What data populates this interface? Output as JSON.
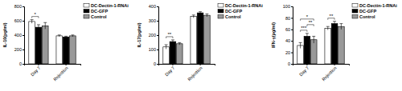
{
  "chart_data": [
    {
      "type": "bar",
      "y_label": "IL-10(pg/ml)",
      "categories": [
        "Day 7",
        "Rejection"
      ],
      "ylim": [
        0,
        800
      ],
      "yticks": [
        0,
        200,
        400,
        600,
        800
      ],
      "legend": "upper right",
      "series": [
        {
          "name": "DC-Dectin-1-RNAi",
          "color": "#ffffff",
          "values": [
            590,
            390
          ],
          "errors": [
            25,
            12
          ]
        },
        {
          "name": "DC-GFP",
          "color": "#000000",
          "values": [
            510,
            375
          ],
          "errors": [
            35,
            10
          ]
        },
        {
          "name": "Control",
          "color": "#999999",
          "values": [
            530,
            390
          ],
          "errors": [
            45,
            12
          ]
        }
      ],
      "annotations": [
        {
          "text": "*",
          "category": "Day 7",
          "from": "DC-Dectin-1-RNAi",
          "to": "DC-GFP"
        }
      ]
    },
    {
      "type": "bar",
      "y_label": "IL-17(pg/ml)",
      "categories": [
        "Day 7",
        "Rejection"
      ],
      "ylim": [
        0,
        400
      ],
      "yticks": [
        0,
        100,
        200,
        300,
        400
      ],
      "legend": "upper right",
      "series": [
        {
          "name": "DC-Dectin-1-RNAi",
          "color": "#ffffff",
          "values": [
            118,
            330
          ],
          "errors": [
            15,
            10
          ]
        },
        {
          "name": "DC-GFP",
          "color": "#000000",
          "values": [
            155,
            355
          ],
          "errors": [
            12,
            8
          ]
        },
        {
          "name": "Control",
          "color": "#999999",
          "values": [
            140,
            338
          ],
          "errors": [
            8,
            10
          ]
        }
      ],
      "annotations": [
        {
          "text": "**",
          "category": "Day 7",
          "from": "DC-Dectin-1-RNAi",
          "to": "DC-GFP"
        }
      ]
    },
    {
      "type": "bar",
      "y_label": "IFN-γ(pg/ml)",
      "categories": [
        "Day 7",
        "Rejection"
      ],
      "ylim": [
        0,
        100
      ],
      "yticks": [
        0,
        20,
        40,
        60,
        80,
        100
      ],
      "legend": "upper right",
      "series": [
        {
          "name": "DC-Dectin-1-RNAi",
          "color": "#ffffff",
          "values": [
            32,
            62
          ],
          "errors": [
            5,
            3
          ]
        },
        {
          "name": "DC-GFP",
          "color": "#000000",
          "values": [
            48,
            70
          ],
          "errors": [
            5,
            4
          ]
        },
        {
          "name": "Control",
          "color": "#999999",
          "values": [
            42,
            65
          ],
          "errors": [
            6,
            5
          ]
        }
      ],
      "annotations": [
        {
          "text": "*",
          "category": "Day 7",
          "from": "DC-Dectin-1-RNAi",
          "to": "Control"
        },
        {
          "text": "***",
          "category": "Day 7",
          "from": "DC-Dectin-1-RNAi",
          "to": "DC-GFP"
        },
        {
          "text": "**",
          "category": "Day 7",
          "from": "DC-GFP",
          "to": "Control"
        },
        {
          "text": "**",
          "category": "Rejection",
          "from": "DC-Dectin-1-RNAi",
          "to": "DC-GFP"
        }
      ]
    }
  ]
}
